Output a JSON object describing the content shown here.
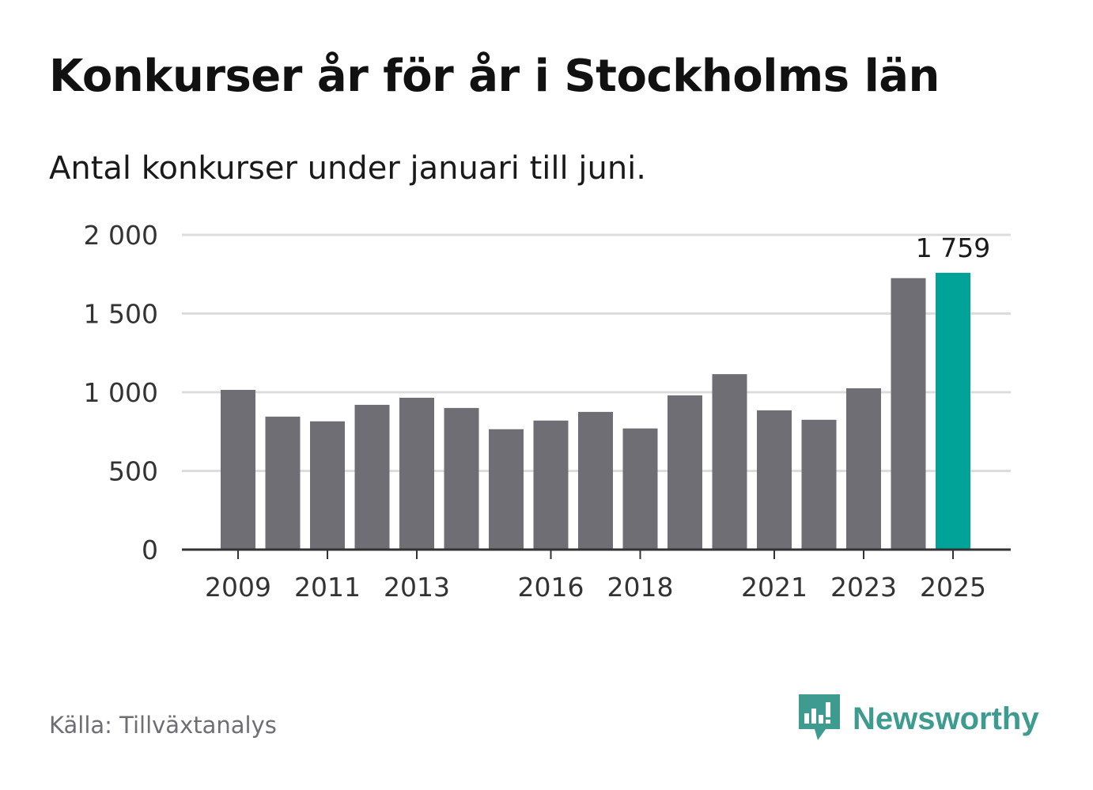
{
  "title": "Konkurser år för år i Stockholms län",
  "subtitle": "Antal konkurser under januari till juni.",
  "source": "Källa: Tillväxtanalys",
  "brand": {
    "name": "Newsworthy",
    "icon": "newsworthy-logo-icon",
    "color": "#3d9c8f"
  },
  "chart_data": {
    "type": "bar",
    "categories": [
      "2009",
      "2010",
      "2011",
      "2012",
      "2013",
      "2014",
      "2015",
      "2016",
      "2017",
      "2018",
      "2019",
      "2020",
      "2021",
      "2022",
      "2023",
      "2024",
      "2025"
    ],
    "values": [
      1015,
      845,
      815,
      920,
      965,
      900,
      765,
      820,
      875,
      770,
      980,
      1115,
      885,
      825,
      1025,
      1725,
      1759
    ],
    "x_tick_labels": [
      "2009",
      "",
      "2011",
      "",
      "2013",
      "",
      "",
      "2016",
      "",
      "2018",
      "",
      "",
      "2021",
      "",
      "2023",
      "",
      "2025"
    ],
    "y_ticks": [
      0,
      500,
      1000,
      1500,
      2000
    ],
    "y_tick_labels": [
      "0",
      "500",
      "1 000",
      "1 500",
      "2 000"
    ],
    "ylim": [
      0,
      2000
    ],
    "highlight_label": "1 759",
    "colors": {
      "bar": "#6f6e75",
      "highlight": "#00a398",
      "grid": "#dcdcdc",
      "axis": "#333333"
    },
    "grid": true
  }
}
